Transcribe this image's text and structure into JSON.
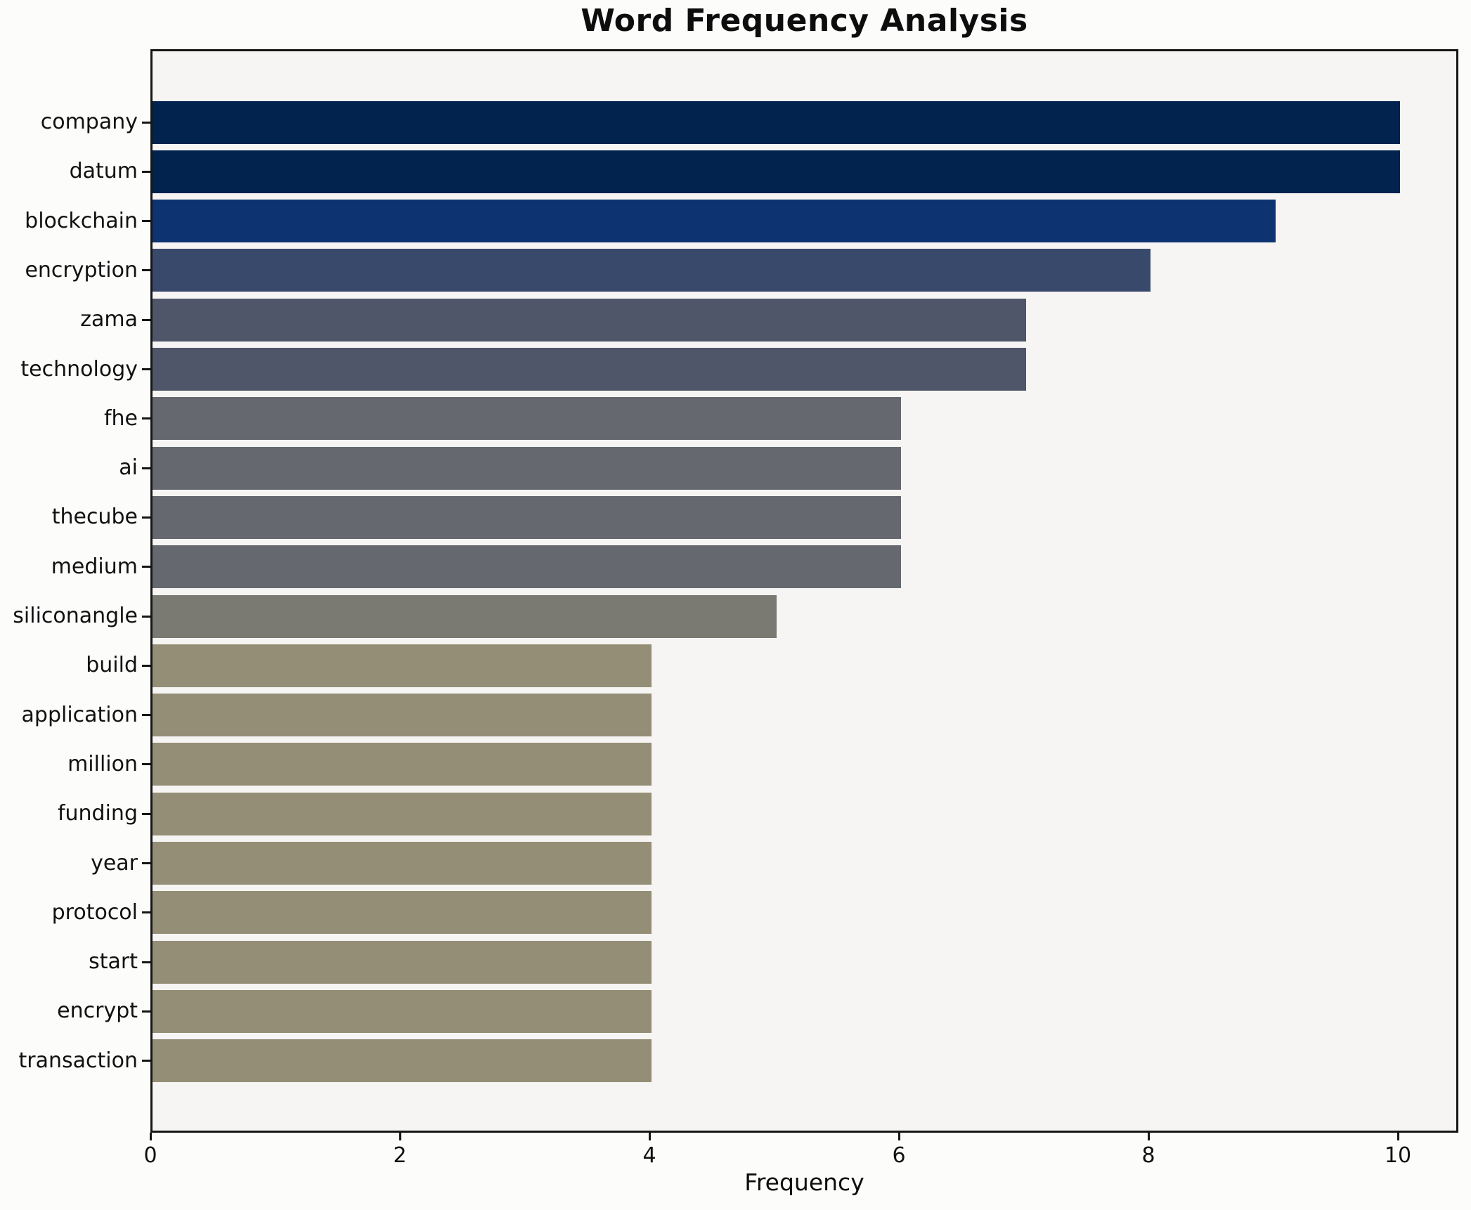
{
  "chart_data": {
    "type": "bar",
    "orientation": "horizontal",
    "title": "Word Frequency Analysis",
    "xlabel": "Frequency",
    "ylabel": "",
    "categories": [
      "company",
      "datum",
      "blockchain",
      "encryption",
      "zama",
      "technology",
      "fhe",
      "ai",
      "thecube",
      "medium",
      "siliconangle",
      "build",
      "application",
      "million",
      "funding",
      "year",
      "protocol",
      "start",
      "encrypt",
      "transaction"
    ],
    "values": [
      10,
      10,
      9,
      8,
      7,
      7,
      6,
      6,
      6,
      6,
      5,
      4,
      4,
      4,
      4,
      4,
      4,
      4,
      4,
      4
    ],
    "bar_colors": [
      "#03234f",
      "#03234f",
      "#0d3470",
      "#38496c",
      "#4f5669",
      "#4f5669",
      "#65686f",
      "#65686f",
      "#65686f",
      "#65686f",
      "#7b7a72",
      "#948e76",
      "#948e76",
      "#948e76",
      "#948e76",
      "#948e76",
      "#948e76",
      "#948e76",
      "#948e76",
      "#948e76"
    ],
    "xticks": [
      0,
      2,
      4,
      6,
      8,
      10
    ],
    "xlim": [
      0,
      10.48
    ],
    "grid": false,
    "legend": null,
    "colors": {
      "figure_bg": "#fcfcfb",
      "axes_bg": "#f6f5f3",
      "spine": "#161616",
      "text": "#0d0d0d"
    }
  }
}
